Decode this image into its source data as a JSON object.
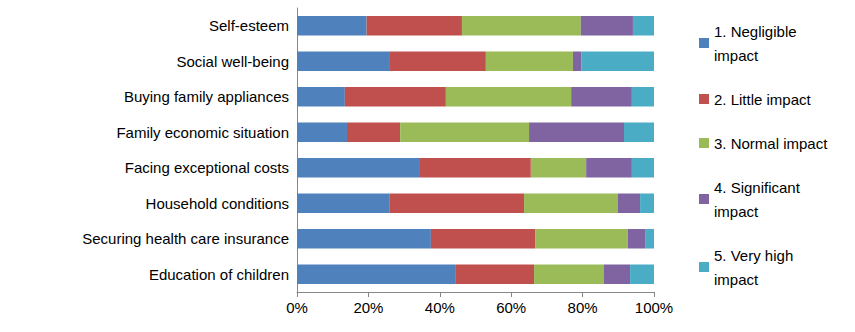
{
  "chart_data": {
    "type": "bar",
    "orientation": "horizontal",
    "stacked": true,
    "grid": false,
    "legend": "right",
    "categories": [
      "Self-esteem",
      "Social well-being",
      "Buying family appliances",
      "Family economic situation",
      "Facing exceptional costs",
      "Household conditions",
      "Securing health care insurance",
      "Education of children"
    ],
    "xlim": [
      0,
      100
    ],
    "xticks": [
      {
        "value": 0,
        "label": "0%"
      },
      {
        "value": 20,
        "label": "20%"
      },
      {
        "value": 40,
        "label": "40%"
      },
      {
        "value": 60,
        "label": "60%"
      },
      {
        "value": 80,
        "label": "80%"
      },
      {
        "value": 100,
        "label": "100%"
      }
    ],
    "series": [
      {
        "name": "1. Negligible impact",
        "color": "#4f81bd",
        "values": [
          19.5,
          25.8,
          13.4,
          14.0,
          34.2,
          26.0,
          37.5,
          44.5
        ]
      },
      {
        "name": "2. Little impact",
        "color": "#c0504d",
        "values": [
          26.7,
          27.1,
          28.3,
          14.9,
          31.3,
          37.6,
          29.2,
          21.9
        ]
      },
      {
        "name": "3. Normal impact",
        "color": "#9bbb59",
        "values": [
          33.3,
          24.4,
          35.1,
          36.1,
          15.5,
          26.3,
          26.0,
          19.6
        ]
      },
      {
        "name": "4. Significant impact",
        "color": "#8064a2",
        "values": [
          14.6,
          2.3,
          17.0,
          26.6,
          12.8,
          6.2,
          4.8,
          7.3
        ]
      },
      {
        "name": "5. Very high impact",
        "color": "#4bacc6",
        "values": [
          5.9,
          20.4,
          6.2,
          8.4,
          6.2,
          3.9,
          2.5,
          6.7
        ]
      }
    ]
  }
}
